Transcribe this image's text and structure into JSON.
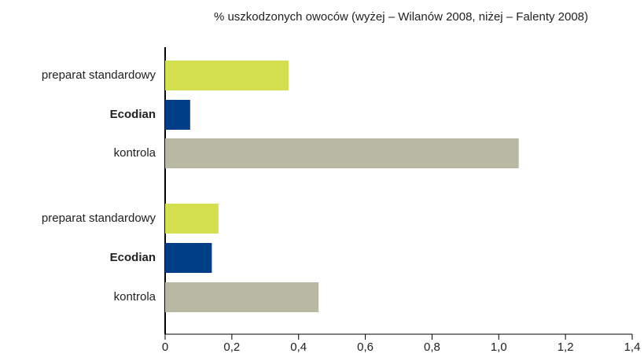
{
  "chart_data": {
    "type": "barh",
    "title": "% uszkodzonych owoców (wyżej – Wilanów 2008, niżej – Falenty 2008)",
    "categories": [
      "preparat standardowy",
      "Ecodian",
      "kontrola",
      "preparat standardowy",
      "Ecodian",
      "kontrola"
    ],
    "values": [
      0.37,
      0.075,
      1.06,
      0.16,
      0.14,
      0.46
    ],
    "colors": [
      "#d4df4e",
      "#003f87",
      "#b9b9a3",
      "#d4df4e",
      "#003f87",
      "#b9b9a3"
    ],
    "xlim": [
      0,
      1.4
    ],
    "xticks": [
      0,
      {
        "value": 0.2,
        "label": "0,2"
      },
      {
        "value": 0.4,
        "label": "0,4"
      },
      {
        "value": 0.6,
        "label": "0,6"
      },
      {
        "value": 0.8,
        "label": "0,8"
      },
      {
        "value": 1.0,
        "label": "1,0"
      },
      {
        "value": 1.2,
        "label": "1,2"
      },
      {
        "value": 1.4,
        "label": "1,4"
      }
    ],
    "grid": false
  }
}
